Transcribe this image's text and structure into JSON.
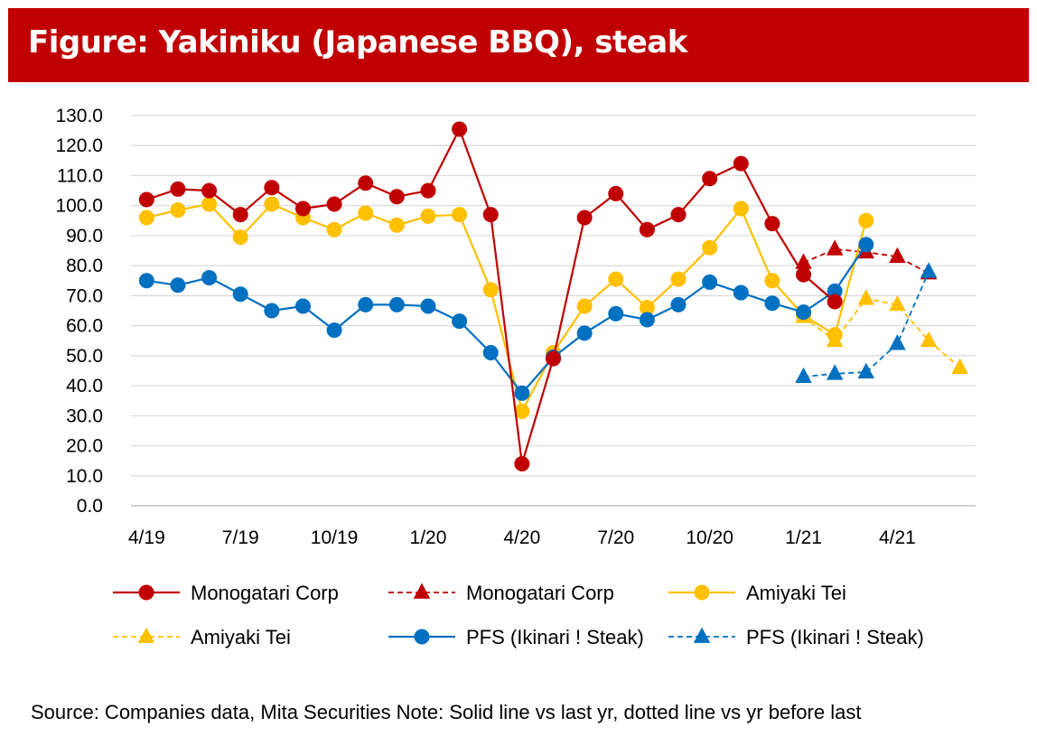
{
  "title": "Figure: Yakiniku (Japanese BBQ), steak",
  "source": "Source: Companies data, Mita Securities",
  "note": "Note: Solid line vs last yr, dotted line vs yr before last",
  "chart_data": {
    "type": "line",
    "title": "Figure: Yakiniku (Japanese BBQ), steak",
    "xlabel": "",
    "ylabel": "",
    "ylim": [
      0,
      130
    ],
    "yticks": [
      "0.0",
      "10.0",
      "20.0",
      "30.0",
      "40.0",
      "50.0",
      "60.0",
      "70.0",
      "80.0",
      "90.0",
      "100.0",
      "110.0",
      "120.0",
      "130.0"
    ],
    "x": [
      "4/19",
      "5/19",
      "6/19",
      "7/19",
      "8/19",
      "9/19",
      "10/19",
      "11/19",
      "12/19",
      "1/20",
      "2/20",
      "3/20",
      "4/20",
      "5/20",
      "6/20",
      "7/20",
      "8/20",
      "9/20",
      "10/20",
      "11/20",
      "12/20",
      "1/21",
      "2/21",
      "3/21",
      "4/21",
      "5/21",
      "6/21"
    ],
    "xtick_labels": [
      "4/19",
      "7/19",
      "10/19",
      "1/20",
      "4/20",
      "7/20",
      "10/20",
      "1/21",
      "4/21"
    ],
    "grid": true,
    "legend_position": "bottom",
    "series": [
      {
        "name": "Monogatari Corp",
        "color": "#c00000",
        "dash": false,
        "marker": "circle",
        "values": [
          102,
          105.5,
          105,
          97,
          106,
          99,
          100.5,
          107.5,
          103,
          105,
          125.5,
          97,
          14,
          49,
          96,
          104,
          92,
          97,
          109,
          114,
          94,
          77,
          68,
          null,
          null,
          null,
          null
        ]
      },
      {
        "name": "Monogatari Corp",
        "color": "#c00000",
        "dash": true,
        "marker": "triangle",
        "values": [
          null,
          null,
          null,
          null,
          null,
          null,
          null,
          null,
          null,
          null,
          null,
          null,
          null,
          null,
          null,
          null,
          null,
          null,
          null,
          null,
          null,
          81,
          85.5,
          84.5,
          83,
          77.5,
          null
        ]
      },
      {
        "name": "Amiyaki Tei",
        "color": "#ffc000",
        "dash": false,
        "marker": "circle",
        "values": [
          96,
          98.5,
          100.5,
          89.5,
          100.5,
          96,
          92,
          97.5,
          93.5,
          96.5,
          97,
          72,
          31.5,
          51,
          66.5,
          75.5,
          66,
          75.5,
          86,
          99,
          75,
          63.5,
          57,
          95,
          null,
          null,
          null
        ]
      },
      {
        "name": "Amiyaki Tei",
        "color": "#ffc000",
        "dash": true,
        "marker": "triangle",
        "values": [
          null,
          null,
          null,
          null,
          null,
          null,
          null,
          null,
          null,
          null,
          null,
          null,
          null,
          null,
          null,
          null,
          null,
          null,
          null,
          null,
          null,
          63,
          55,
          69,
          67,
          55,
          46
        ]
      },
      {
        "name": "PFS (Ikinari ! Steak)",
        "color": "#0070c0",
        "dash": false,
        "marker": "circle",
        "values": [
          75,
          73.5,
          76,
          70.5,
          65,
          66.5,
          58.5,
          67,
          67,
          66.5,
          61.5,
          51,
          37.5,
          49.5,
          57.5,
          64,
          62,
          67,
          74.5,
          71,
          67.5,
          64.5,
          71.5,
          87,
          null,
          null,
          null
        ]
      },
      {
        "name": "PFS (Ikinari ! Steak)",
        "color": "#0070c0",
        "dash": true,
        "marker": "triangle",
        "values": [
          null,
          null,
          null,
          null,
          null,
          null,
          null,
          null,
          null,
          null,
          null,
          null,
          null,
          null,
          null,
          null,
          null,
          null,
          null,
          null,
          null,
          43,
          44,
          44.5,
          54,
          78,
          null
        ]
      }
    ]
  }
}
